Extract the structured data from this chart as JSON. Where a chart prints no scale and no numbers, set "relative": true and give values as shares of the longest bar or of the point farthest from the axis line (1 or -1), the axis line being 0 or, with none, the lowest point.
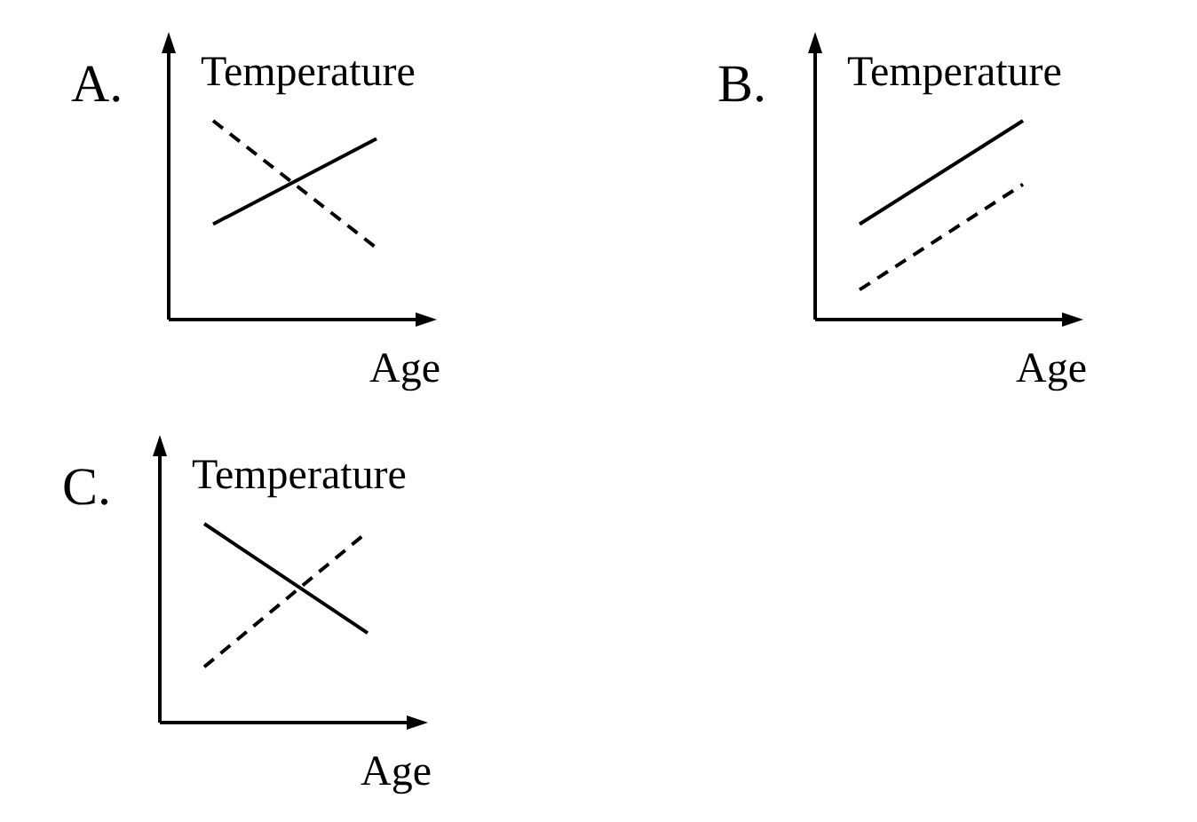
{
  "chart_data": [
    {
      "type": "line",
      "title": "A.",
      "ylabel": "Temperature",
      "xlabel": "Age",
      "relative": true,
      "categories": [
        null,
        null
      ],
      "series": [
        {
          "color": "#000000",
          "line_style": "solid",
          "values": [
            0.48,
            0.91
          ]
        },
        {
          "color": "#000000",
          "line_style": "dashed",
          "values": [
            1,
            0.36
          ]
        }
      ]
    },
    {
      "type": "line",
      "title": "B.",
      "ylabel": "Temperature",
      "xlabel": "Age",
      "relative": true,
      "categories": [
        null,
        null
      ],
      "series": [
        {
          "color": "#000000",
          "line_style": "solid",
          "values": [
            0.48,
            1
          ]
        },
        {
          "color": "#000000",
          "line_style": "dashed",
          "values": [
            0.15,
            0.68
          ]
        }
      ]
    },
    {
      "type": "line",
      "title": "C.",
      "ylabel": "Temperature",
      "xlabel": "Age",
      "relative": true,
      "categories": [
        null,
        null
      ],
      "series": [
        {
          "color": "#000000",
          "line_style": "solid",
          "values": [
            1,
            0.45
          ]
        },
        {
          "color": "#000000",
          "line_style": "dashed",
          "values": [
            0.28,
            0.96
          ]
        }
      ]
    }
  ]
}
